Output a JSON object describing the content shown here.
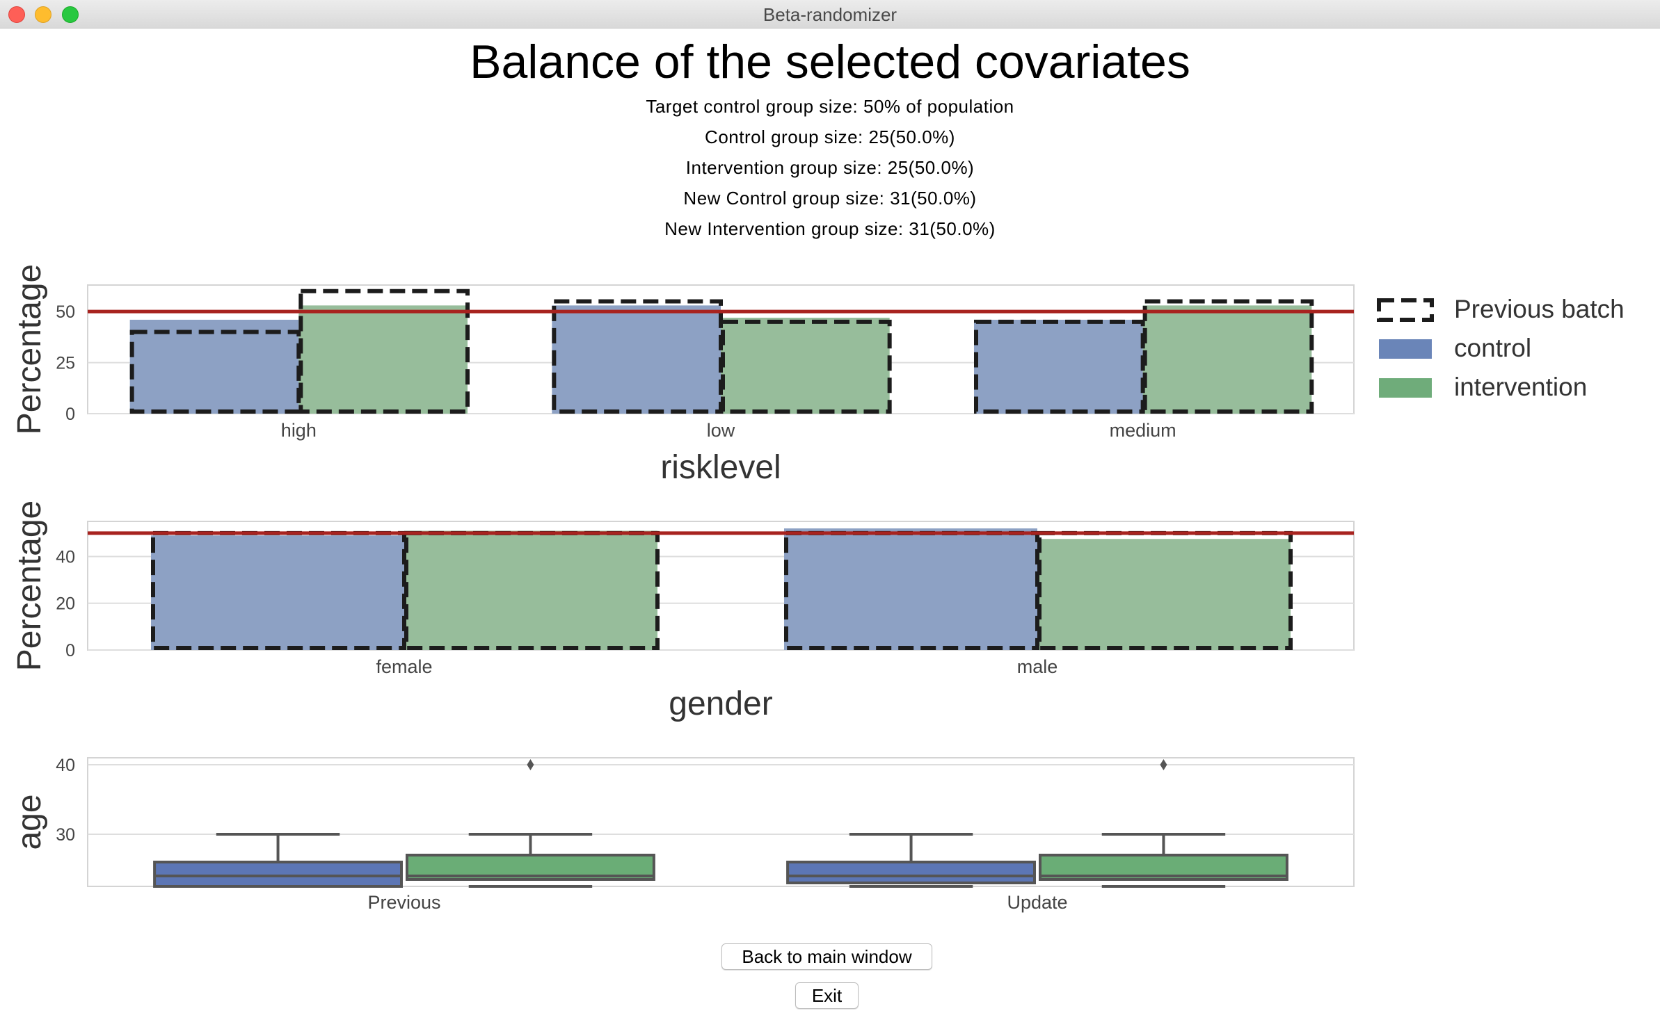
{
  "window": {
    "title": "Beta-randomizer"
  },
  "header": {
    "title": "Balance of the selected covariates",
    "lines": [
      "Target control group size: 50% of population",
      "Control group size: 25(50.0%)",
      "Intervention group size: 25(50.0%)",
      "New Control group size: 31(50.0%)",
      "New Intervention group size: 31(50.0%)"
    ]
  },
  "colors": {
    "control": "#8da1c4",
    "intervention": "#97bd9b",
    "control_legend": "#6a85b8",
    "intervention_legend": "#6fac7a",
    "target_line": "#a8231f",
    "grid": "#dedede",
    "box_control": "#5c76b5",
    "box_intervention": "#6aad76"
  },
  "legend": {
    "entries": [
      {
        "label": "Previous batch",
        "style": "dashed-outline"
      },
      {
        "label": "control",
        "color": "#6a85b8"
      },
      {
        "label": "intervention",
        "color": "#6fac7a"
      }
    ]
  },
  "chart_data": [
    {
      "type": "bar",
      "xlabel": "risklevel",
      "ylabel": "Percentage",
      "categories": [
        "high",
        "low",
        "medium"
      ],
      "ylim": [
        0,
        63
      ],
      "yticks": [
        0,
        25,
        50
      ],
      "target_line": 50,
      "series": [
        {
          "name": "control",
          "values": [
            46,
            53,
            46
          ]
        },
        {
          "name": "intervention",
          "values": [
            53,
            47,
            53
          ]
        }
      ],
      "previous_batch": {
        "control": [
          40,
          55,
          45
        ],
        "intervention": [
          60,
          45,
          55
        ]
      }
    },
    {
      "type": "bar",
      "xlabel": "gender",
      "ylabel": "Percentage",
      "categories": [
        "female",
        "male"
      ],
      "ylim": [
        0,
        55
      ],
      "yticks": [
        0,
        20,
        40
      ],
      "target_line": 50,
      "series": [
        {
          "name": "control",
          "values": [
            49,
            52
          ]
        },
        {
          "name": "intervention",
          "values": [
            51,
            47.5
          ]
        }
      ],
      "previous_batch": {
        "control": [
          50,
          50
        ],
        "intervention": [
          50,
          50
        ]
      }
    },
    {
      "type": "box",
      "xlabel": "",
      "ylabel": "age",
      "categories": [
        "Previous",
        "Update"
      ],
      "ylim": [
        22.5,
        41
      ],
      "yticks": [
        30,
        40
      ],
      "groups": [
        {
          "category": "Previous",
          "control": {
            "whislo": 22.5,
            "q1": 22.5,
            "med": 24,
            "q3": 26,
            "whishi": 30,
            "fliers": []
          },
          "intervention": {
            "whislo": 22.5,
            "q1": 23.5,
            "med": 24,
            "q3": 27,
            "whishi": 30,
            "fliers": [
              40
            ]
          }
        },
        {
          "category": "Update",
          "control": {
            "whislo": 22.5,
            "q1": 23,
            "med": 24,
            "q3": 26,
            "whishi": 30,
            "fliers": []
          },
          "intervention": {
            "whislo": 22.5,
            "q1": 23.5,
            "med": 24,
            "q3": 27,
            "whishi": 30,
            "fliers": [
              40
            ]
          }
        }
      ]
    }
  ],
  "buttons": {
    "back": "Back to main window",
    "exit": "Exit"
  }
}
